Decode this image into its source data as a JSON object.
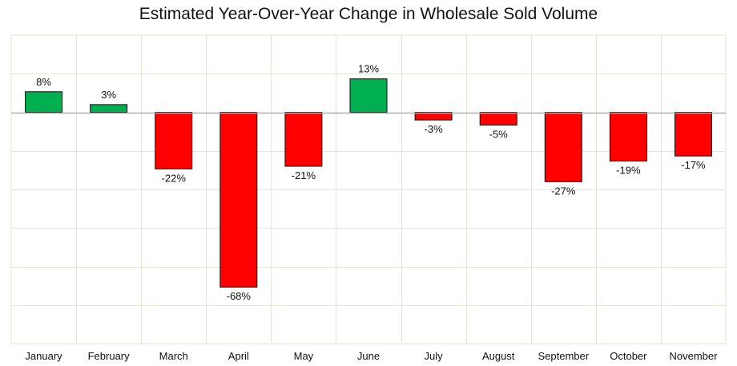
{
  "chart_data": {
    "type": "bar",
    "title": "Estimated Year-Over-Year Change in Wholesale Sold Volume",
    "categories": [
      "January",
      "February",
      "March",
      "April",
      "May",
      "June",
      "July",
      "August",
      "September",
      "October",
      "November"
    ],
    "values": [
      8,
      3,
      -22,
      -68,
      -21,
      13,
      -3,
      -5,
      -27,
      -19,
      -17
    ],
    "data_labels": [
      "8%",
      "3%",
      "-22%",
      "-68%",
      "-21%",
      "13%",
      "-3%",
      "-5%",
      "-27%",
      "-19%",
      "-17%"
    ],
    "xlabel": "",
    "ylabel": "",
    "ylim": [
      -90,
      30
    ],
    "grid": true,
    "legend": "none",
    "colors": {
      "positive": "#00b050",
      "negative": "#ff0000",
      "bar_outline": "#111111",
      "gridline": "#e5e5d5",
      "zero_line": "#b0b0b0"
    }
  }
}
